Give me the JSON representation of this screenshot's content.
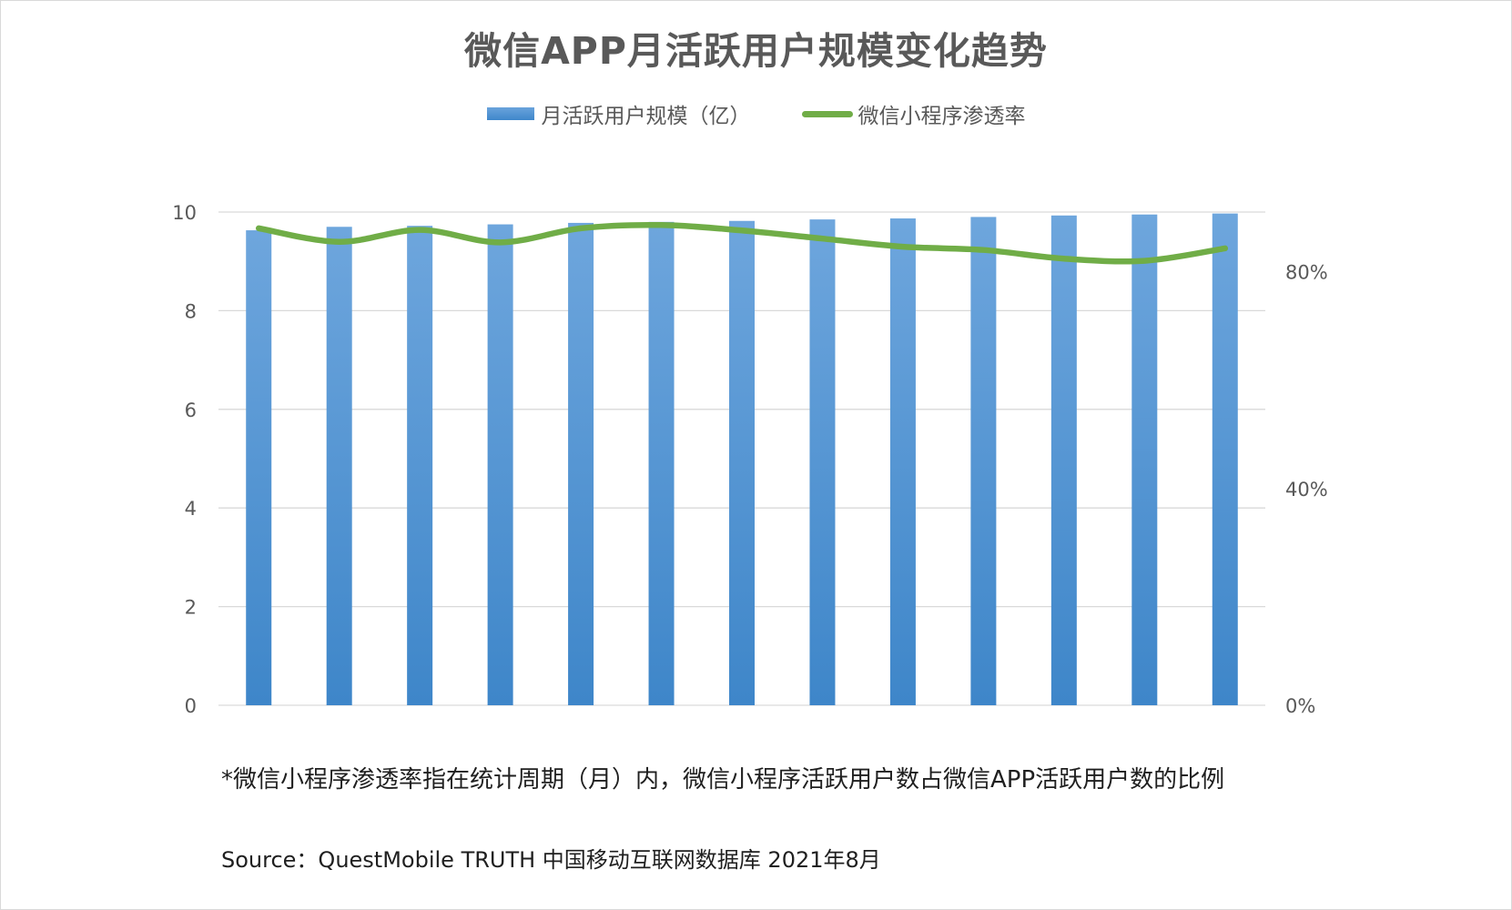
{
  "chart_data": {
    "type": "bar",
    "title": "微信APP月活跃用户规模变化趋势",
    "series": [
      {
        "name": "月活跃用户规模（亿）",
        "type": "bar",
        "axis": "left",
        "color": "#4a8fd4",
        "values": [
          9.63,
          9.7,
          9.72,
          9.75,
          9.78,
          9.8,
          9.82,
          9.85,
          9.87,
          9.9,
          9.93,
          9.95,
          9.97
        ]
      },
      {
        "name": "微信小程序渗透率",
        "type": "line",
        "axis": "right",
        "color": "#70ad47",
        "values": [
          88.0,
          85.5,
          87.7,
          85.4,
          88.0,
          88.6,
          87.6,
          86.1,
          84.6,
          84.0,
          82.4,
          82.0,
          84.3
        ]
      }
    ],
    "y_left": {
      "ylim": [
        0,
        10
      ],
      "ticks": [
        "0",
        "2",
        "4",
        "6",
        "8",
        "10"
      ]
    },
    "y_right": {
      "ylim": [
        0,
        91
      ],
      "ticks": [
        "0%",
        "40%",
        "80%"
      ],
      "tick_values": [
        0,
        40,
        80
      ]
    },
    "grid": true,
    "legend_position": "top-center"
  },
  "note": "*微信小程序渗透率指在统计周期（月）内，微信小程序活跃用户数占微信APP活跃用户数的比例",
  "source": "Source：QuestMobile TRUTH 中国移动互联网数据库 2021年8月"
}
